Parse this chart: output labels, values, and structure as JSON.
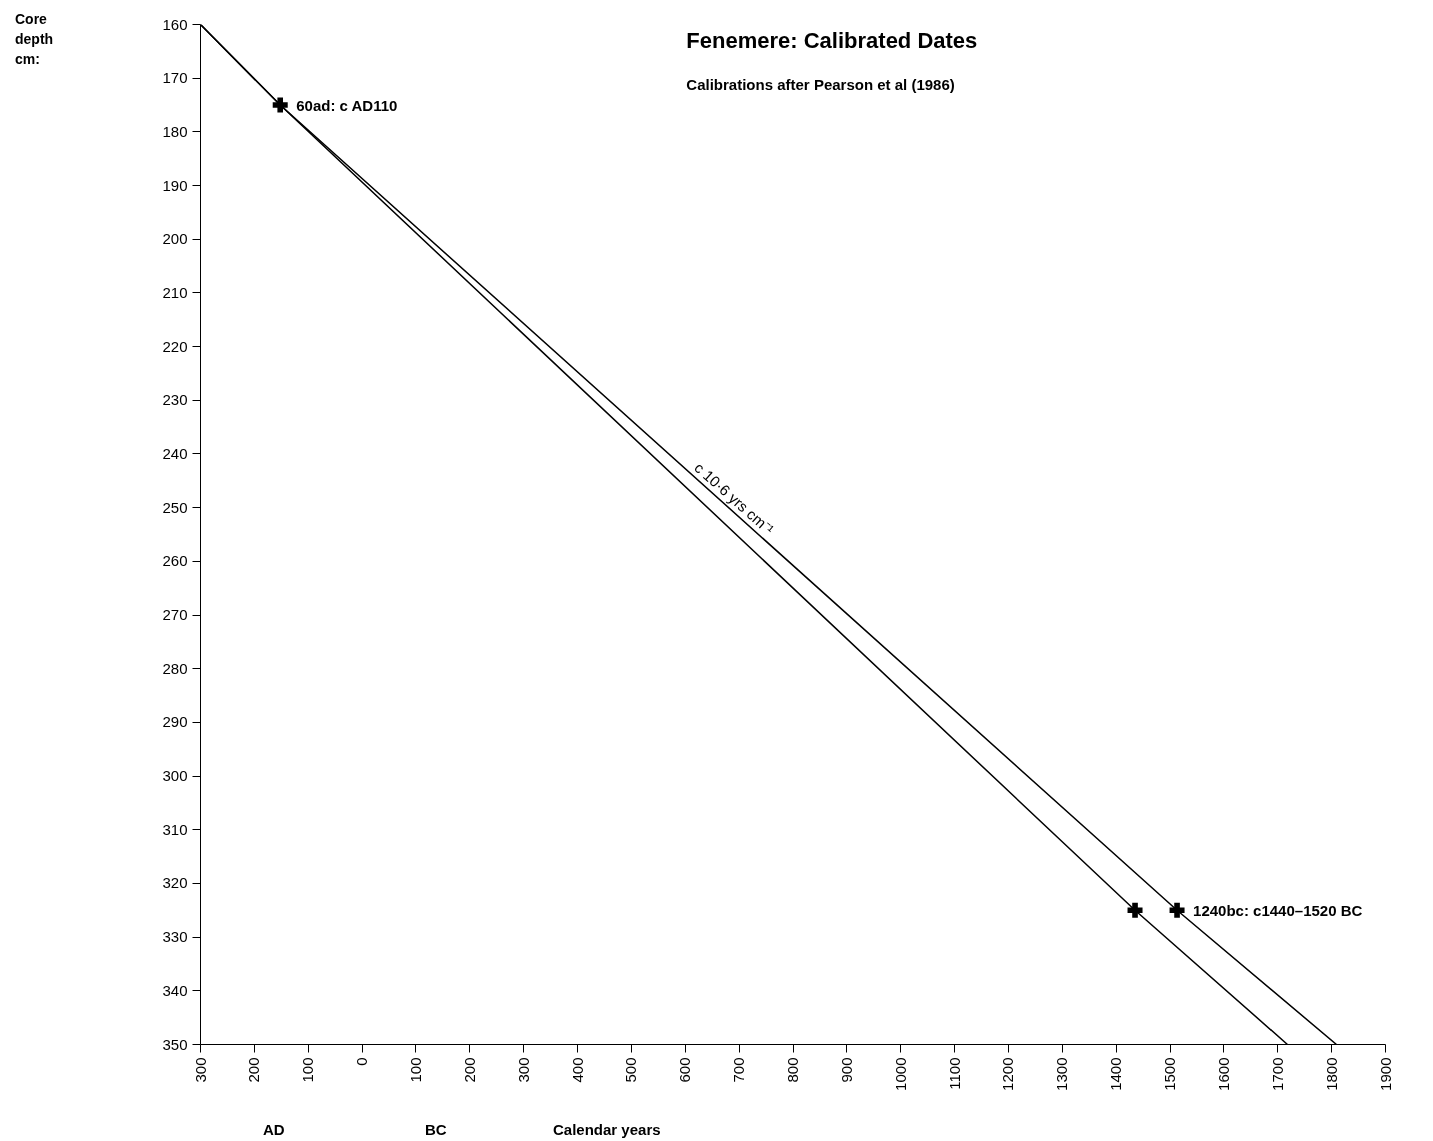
{
  "chart_data": {
    "type": "line",
    "title": "Fenemere: Calibrated Dates",
    "subtitle": "Calibrations after Pearson et al (1986)",
    "xlabel": "Calendar years",
    "xlim": [
      -300,
      1900
    ],
    "ylim": [
      350,
      160
    ],
    "xticks": [
      {
        "value": -300,
        "label": "300"
      },
      {
        "value": -200,
        "label": "200"
      },
      {
        "value": -100,
        "label": "100"
      },
      0,
      100,
      200,
      300,
      400,
      500,
      600,
      700,
      800,
      900,
      1000,
      1100,
      1200,
      1300,
      1400,
      1500,
      1600,
      1700,
      1800,
      1900
    ],
    "yticks": [
      160,
      170,
      180,
      190,
      200,
      210,
      220,
      230,
      240,
      250,
      260,
      270,
      280,
      290,
      300,
      310,
      320,
      330,
      340,
      350
    ],
    "grid": false,
    "line_style": "solid",
    "marker": "none",
    "series": [
      {
        "color": "#000000",
        "x": [
          -300,
          -152,
          1435,
          1718
        ],
        "values": [
          160,
          175,
          325,
          350
        ]
      },
      {
        "color": "#000000",
        "x": [
          -300,
          -152,
          1513,
          1809
        ],
        "values": [
          160,
          175,
          325,
          350
        ]
      },
      {
        "type": "scatter",
        "marker": "cross",
        "color": "#000000",
        "x": [
          -152,
          1435,
          1513
        ],
        "values": [
          175,
          325,
          325
        ]
      }
    ],
    "annotations": [
      {
        "text": "60ad: c AD110",
        "x": -152,
        "y": 175
      },
      {
        "text": "1240bc: c1440–1520 BC",
        "x": 1513,
        "y": 325
      },
      "Core depth cm:",
      "c 10·6 yrs cm⁻¹",
      "AD",
      "BC"
    ]
  }
}
